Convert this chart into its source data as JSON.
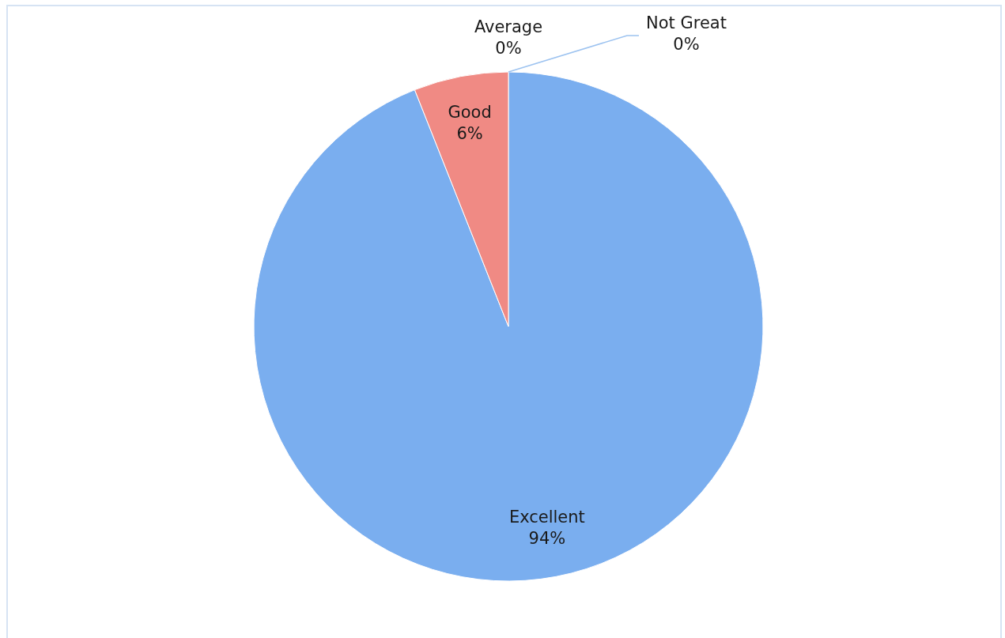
{
  "chart_data": {
    "type": "pie",
    "categories": [
      "Excellent",
      "Good",
      "Average",
      "Not Great"
    ],
    "values": [
      94,
      6,
      0,
      0
    ],
    "colors": [
      "#7aaeef",
      "#f08a84",
      null,
      null
    ],
    "value_labels": [
      "94%",
      "6%",
      "0%",
      "0%"
    ],
    "legend": false
  }
}
